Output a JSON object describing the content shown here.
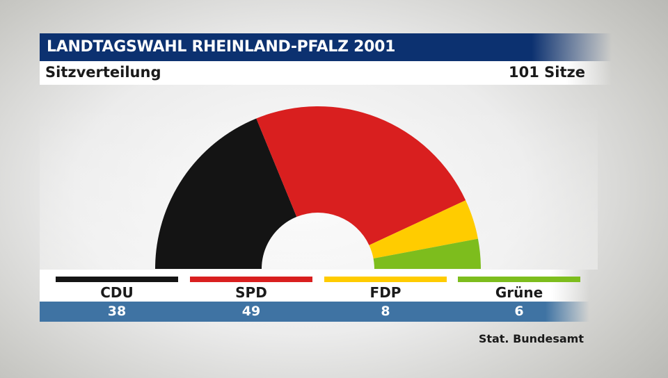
{
  "header": {
    "title": "LANDTAGSWAHL RHEINLAND-PFALZ 2001",
    "subtitle": "Sitzverteilung",
    "total_label": "101 Sitze"
  },
  "chart_data": {
    "type": "pie",
    "style": "half-donut (parliament seat distribution)",
    "title": "LANDTAGSWAHL RHEINLAND-PFALZ 2001",
    "subtitle": "Sitzverteilung",
    "total": 101,
    "categories": [
      "CDU",
      "SPD",
      "FDP",
      "Grüne"
    ],
    "values": [
      38,
      49,
      8,
      6
    ],
    "value_labels": [
      "38",
      "49",
      "8",
      "6"
    ],
    "colors": [
      "#141414",
      "#d91f1f",
      "#ffcc00",
      "#7dbd1d"
    ],
    "legend_placement": "bottom"
  },
  "footer": {
    "source": "Stat. Bundesamt"
  }
}
